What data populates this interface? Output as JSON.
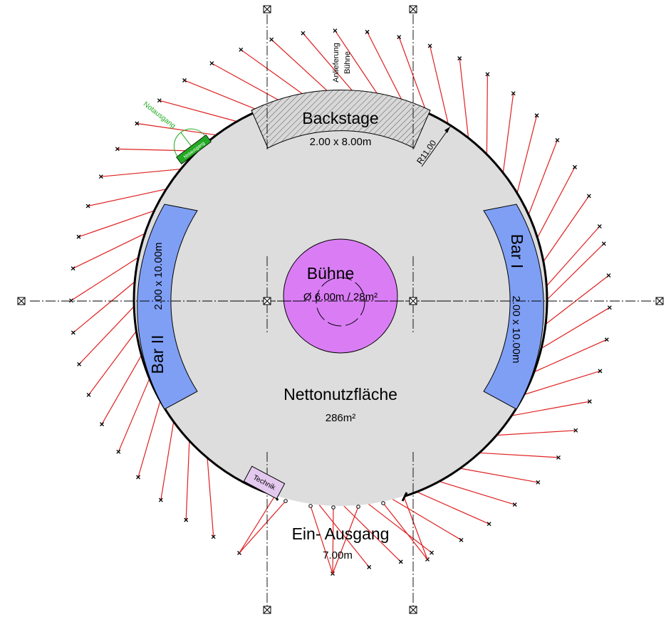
{
  "labels": {
    "stage_title": "Bühne",
    "stage_size": "Ø 6.00m / 28m²",
    "net_area_title": "Nettonutzfläche",
    "net_area_value": "286m²",
    "backstage_title": "Backstage",
    "backstage_size": "2.00 x 8.00m",
    "bar1_title": "Bar I",
    "bar1_size": "2.00 x 10.00m",
    "bar2_title": "Bar II",
    "bar2_size": "2.00 x 10.00m",
    "entrance_title": "Ein- Ausgang",
    "entrance_width": "7.00m",
    "radius": "R11.00",
    "emergency_exit": "Notausgang",
    "emergency_exit_small": "Notausgang",
    "technik": "Technik",
    "delivery_line1": "Anlieferung",
    "delivery_line2": "Bühne"
  },
  "colors": {
    "floor": "#dddddd",
    "stage": "#da7df5",
    "bar": "#7f9ff5",
    "backstage_hatch": "#555555",
    "guy_rope": "#e02020",
    "emergency_exit": "#22aa22",
    "technik": "#e4c9ee"
  }
}
